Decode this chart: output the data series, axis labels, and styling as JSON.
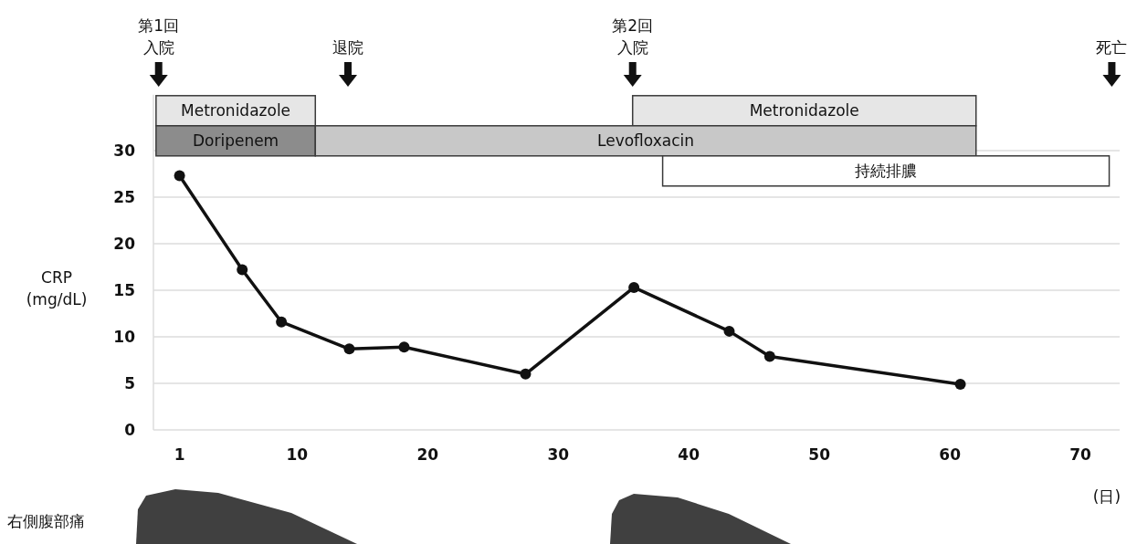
{
  "chart_data": {
    "type": "line",
    "xlim": [
      -1,
      73
    ],
    "xticks": [
      1,
      10,
      20,
      30,
      40,
      50,
      60,
      70
    ],
    "ylim": [
      0,
      36
    ],
    "yticks": [
      0,
      5,
      10,
      15,
      20,
      25,
      30
    ],
    "ylabel": "CRP\n(mg/dL)",
    "xlabel": "(日)",
    "grid": "y",
    "marker": "circle",
    "line_style": "solid",
    "x": [
      1,
      5.8,
      8.8,
      14.0,
      18.2,
      27.5,
      35.8,
      43.1,
      46.2,
      60.8
    ],
    "series": [
      {
        "color": "#111111",
        "values": [
          27.3,
          17.2,
          11.6,
          8.7,
          8.9,
          6.0,
          15.3,
          10.6,
          7.9,
          4.9
        ]
      }
    ],
    "bands": [
      {
        "axis": "x",
        "from": -0.8,
        "to": 11.4,
        "label": "Metronidazole",
        "color": "#e6e6e6"
      },
      {
        "axis": "x",
        "from": 35.7,
        "to": 62.0,
        "label": "Metronidazole",
        "color": "#e6e6e6"
      },
      {
        "axis": "x",
        "from": -0.8,
        "to": 11.4,
        "label": "Doripenem",
        "color": "#8c8c8c"
      },
      {
        "axis": "x",
        "from": 11.4,
        "to": 62.0,
        "label": "Levofloxacin",
        "color": "#c8c8c8"
      },
      {
        "axis": "x",
        "from": 38.0,
        "to": 72.2,
        "label": "持続排膿",
        "color": "#ffffff"
      }
    ],
    "ref_lines": [
      {
        "axis": "x",
        "value": -0.6,
        "label": "第1回入院"
      },
      {
        "axis": "x",
        "value": 13.9,
        "label": "退院"
      },
      {
        "axis": "x",
        "value": 35.7,
        "label": "第2回入院"
      },
      {
        "axis": "x",
        "value": 72.4,
        "label": "死亡"
      }
    ],
    "annotations": [
      "右側腹部痛"
    ]
  }
}
